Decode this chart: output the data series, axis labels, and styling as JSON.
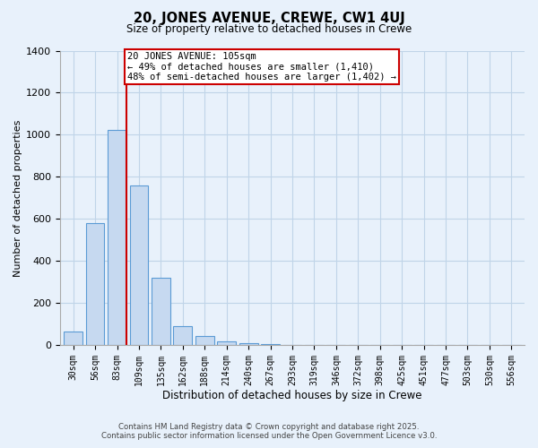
{
  "title": "20, JONES AVENUE, CREWE, CW1 4UJ",
  "subtitle": "Size of property relative to detached houses in Crewe",
  "xlabel": "Distribution of detached houses by size in Crewe",
  "ylabel": "Number of detached properties",
  "categories": [
    "30sqm",
    "56sqm",
    "83sqm",
    "109sqm",
    "135sqm",
    "162sqm",
    "188sqm",
    "214sqm",
    "240sqm",
    "267sqm",
    "293sqm",
    "319sqm",
    "346sqm",
    "372sqm",
    "398sqm",
    "425sqm",
    "451sqm",
    "477sqm",
    "503sqm",
    "530sqm",
    "556sqm"
  ],
  "bar_values": [
    65,
    580,
    1025,
    760,
    320,
    90,
    42,
    20,
    10,
    5,
    2,
    0,
    0,
    0,
    0,
    0,
    0,
    0,
    0,
    0,
    0
  ],
  "bar_color": "#c6d9f0",
  "bar_edge_color": "#5b9bd5",
  "grid_color": "#c0d4e8",
  "background_color": "#e8f1fb",
  "vline_color": "#cc0000",
  "annotation_title": "20 JONES AVENUE: 105sqm",
  "annotation_line1": "← 49% of detached houses are smaller (1,410)",
  "annotation_line2": "48% of semi-detached houses are larger (1,402) →",
  "annotation_box_color": "#ffffff",
  "annotation_box_edge": "#cc0000",
  "ylim": [
    0,
    1400
  ],
  "yticks": [
    0,
    200,
    400,
    600,
    800,
    1000,
    1200,
    1400
  ],
  "footer1": "Contains HM Land Registry data © Crown copyright and database right 2025.",
  "footer2": "Contains public sector information licensed under the Open Government Licence v3.0."
}
